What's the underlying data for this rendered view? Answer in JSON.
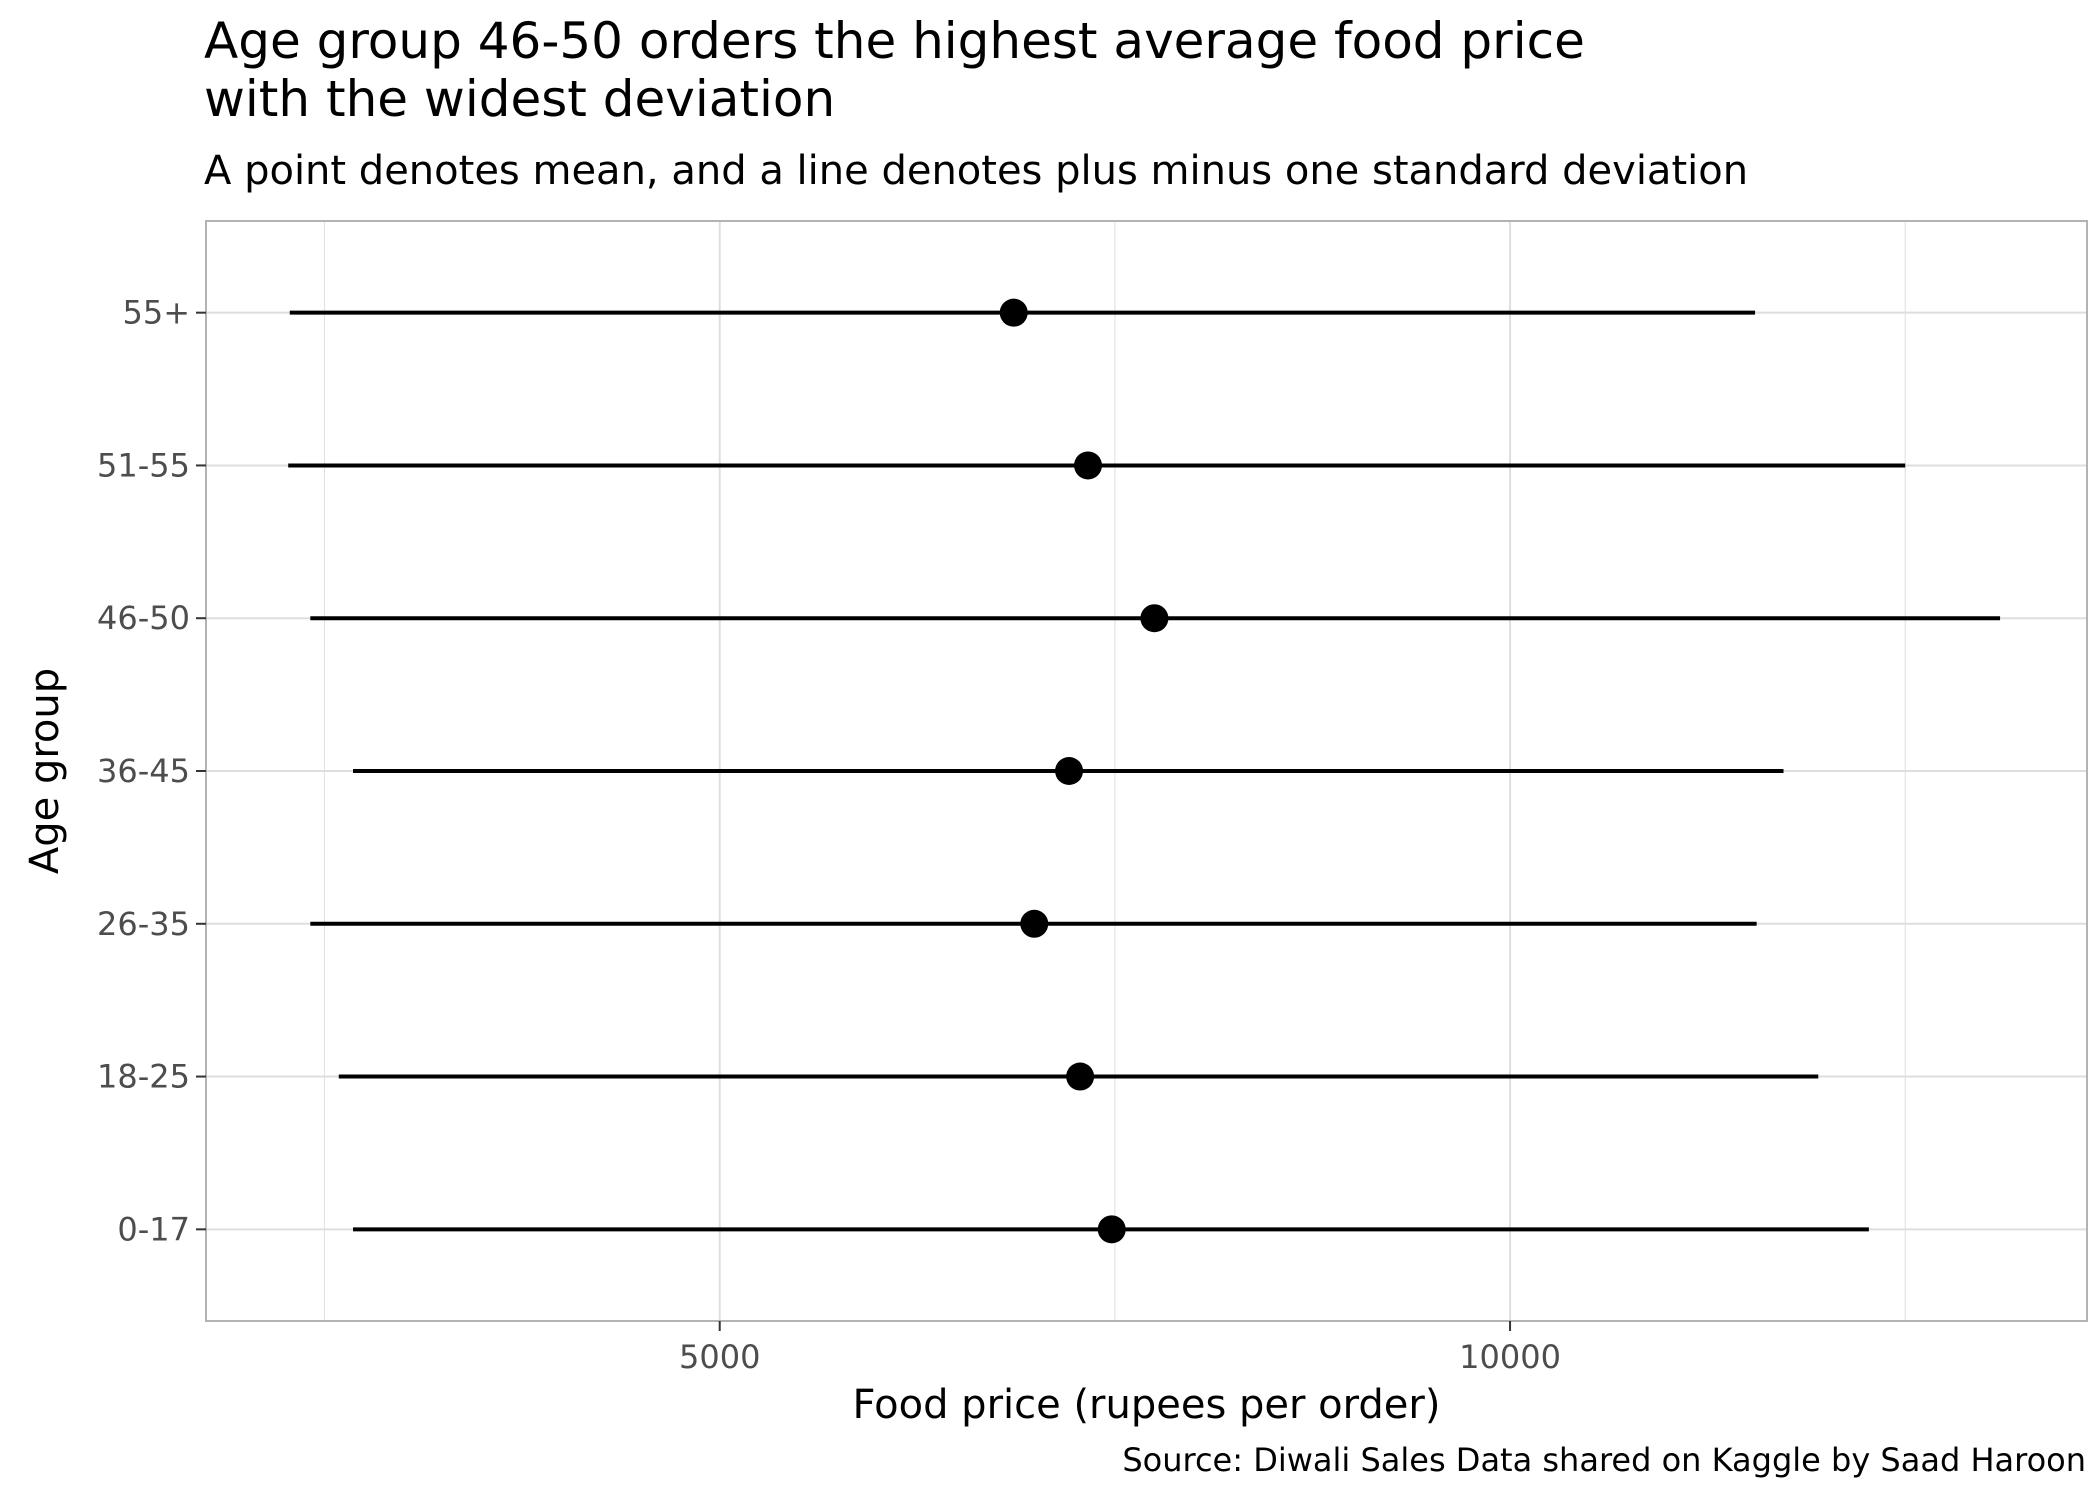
{
  "chart_data": {
    "type": "scatter",
    "title": "Age group 46-50 orders the highest average food price with the widest deviation",
    "title_lines": [
      "Age group 46-50 orders the highest average food price",
      "with the widest deviation"
    ],
    "subtitle": "A point denotes mean, and a line denotes plus minus one standard deviation",
    "caption": "Source: Diwali Sales Data shared on Kaggle by Saad Haroon",
    "xlabel": "Food price (rupees per order)",
    "ylabel": "Age group",
    "xlim": [
      1750,
      13650
    ],
    "xticks": [
      5000,
      10000
    ],
    "xtick_labels": [
      "5000",
      "10000"
    ],
    "grid": true,
    "categories": [
      "0-17",
      "18-25",
      "26-35",
      "36-45",
      "46-50",
      "51-55",
      "55+"
    ],
    "series": [
      {
        "mean": [
          7480,
          7280,
          6990,
          7210,
          7750,
          7330,
          6860
        ],
        "lower": [
          2680,
          2590,
          2410,
          2680,
          2410,
          2270,
          2280
        ],
        "upper": [
          12270,
          11950,
          11560,
          11730,
          13100,
          12500,
          11550
        ]
      }
    ],
    "colors": {
      "line": "#000000",
      "point": "#000000",
      "grid": "#dedede",
      "border": "#b3b3b3"
    }
  }
}
